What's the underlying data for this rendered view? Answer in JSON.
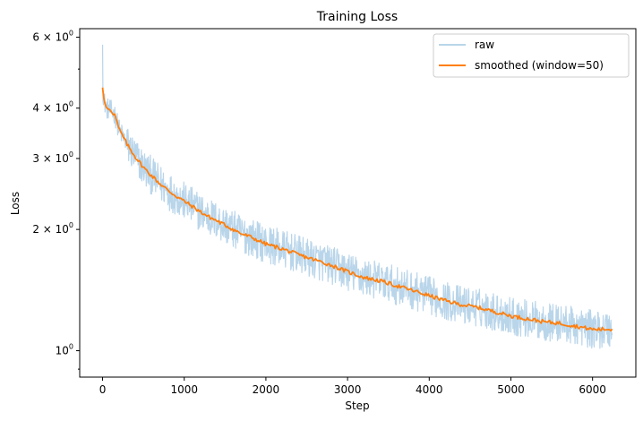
{
  "chart_data": {
    "type": "line",
    "title": "Training Loss",
    "xlabel": "Step",
    "ylabel": "Loss",
    "xlim": [
      -280,
      6530
    ],
    "ylim": [
      0.86,
      6.3
    ],
    "yscale": "log",
    "grid": false,
    "legend_position": "top-right",
    "x_ticks": [
      {
        "value": 0,
        "label": "0"
      },
      {
        "value": 1000,
        "label": "1000"
      },
      {
        "value": 2000,
        "label": "2000"
      },
      {
        "value": 3000,
        "label": "3000"
      },
      {
        "value": 4000,
        "label": "4000"
      },
      {
        "value": 5000,
        "label": "5000"
      },
      {
        "value": 6000,
        "label": "6000"
      }
    ],
    "y_major_ticks": [
      {
        "value": 1,
        "base": "10",
        "exp": "0"
      },
      {
        "value": 2,
        "base": "2 × 10",
        "exp": "0"
      },
      {
        "value": 3,
        "base": "3 × 10",
        "exp": "0"
      },
      {
        "value": 4,
        "base": "4 × 10",
        "exp": "0"
      },
      {
        "value": 6,
        "base": "6 × 10",
        "exp": "0"
      }
    ],
    "y_minor_ticks": [
      0.9,
      5
    ],
    "series": [
      {
        "name": "raw",
        "color": "#b9d5ea",
        "x_step_interval": 5,
        "x_end": 6240,
        "noise_band": 0.11,
        "start_value": 5.75
      },
      {
        "name": "smoothed (window=50)",
        "color": "#ff7f0e",
        "points": [
          [
            0,
            4.5
          ],
          [
            20,
            4.15
          ],
          [
            50,
            4.0
          ],
          [
            100,
            3.95
          ],
          [
            150,
            3.85
          ],
          [
            200,
            3.55
          ],
          [
            300,
            3.25
          ],
          [
            400,
            3.03
          ],
          [
            500,
            2.85
          ],
          [
            600,
            2.72
          ],
          [
            700,
            2.6
          ],
          [
            800,
            2.5
          ],
          [
            900,
            2.42
          ],
          [
            1000,
            2.35
          ],
          [
            1100,
            2.28
          ],
          [
            1200,
            2.21
          ],
          [
            1300,
            2.15
          ],
          [
            1400,
            2.1
          ],
          [
            1500,
            2.05
          ],
          [
            1600,
            2.0
          ],
          [
            1700,
            1.95
          ],
          [
            1800,
            1.92
          ],
          [
            1900,
            1.88
          ],
          [
            2000,
            1.84
          ],
          [
            2200,
            1.79
          ],
          [
            2400,
            1.73
          ],
          [
            2600,
            1.68
          ],
          [
            2800,
            1.63
          ],
          [
            3000,
            1.57
          ],
          [
            3200,
            1.52
          ],
          [
            3400,
            1.49
          ],
          [
            3600,
            1.45
          ],
          [
            3800,
            1.41
          ],
          [
            4000,
            1.37
          ],
          [
            4200,
            1.33
          ],
          [
            4400,
            1.3
          ],
          [
            4600,
            1.28
          ],
          [
            4800,
            1.25
          ],
          [
            5000,
            1.22
          ],
          [
            5200,
            1.2
          ],
          [
            5400,
            1.18
          ],
          [
            5600,
            1.17
          ],
          [
            5800,
            1.15
          ],
          [
            6000,
            1.13
          ],
          [
            6150,
            1.13
          ],
          [
            6240,
            1.13
          ]
        ]
      }
    ]
  }
}
